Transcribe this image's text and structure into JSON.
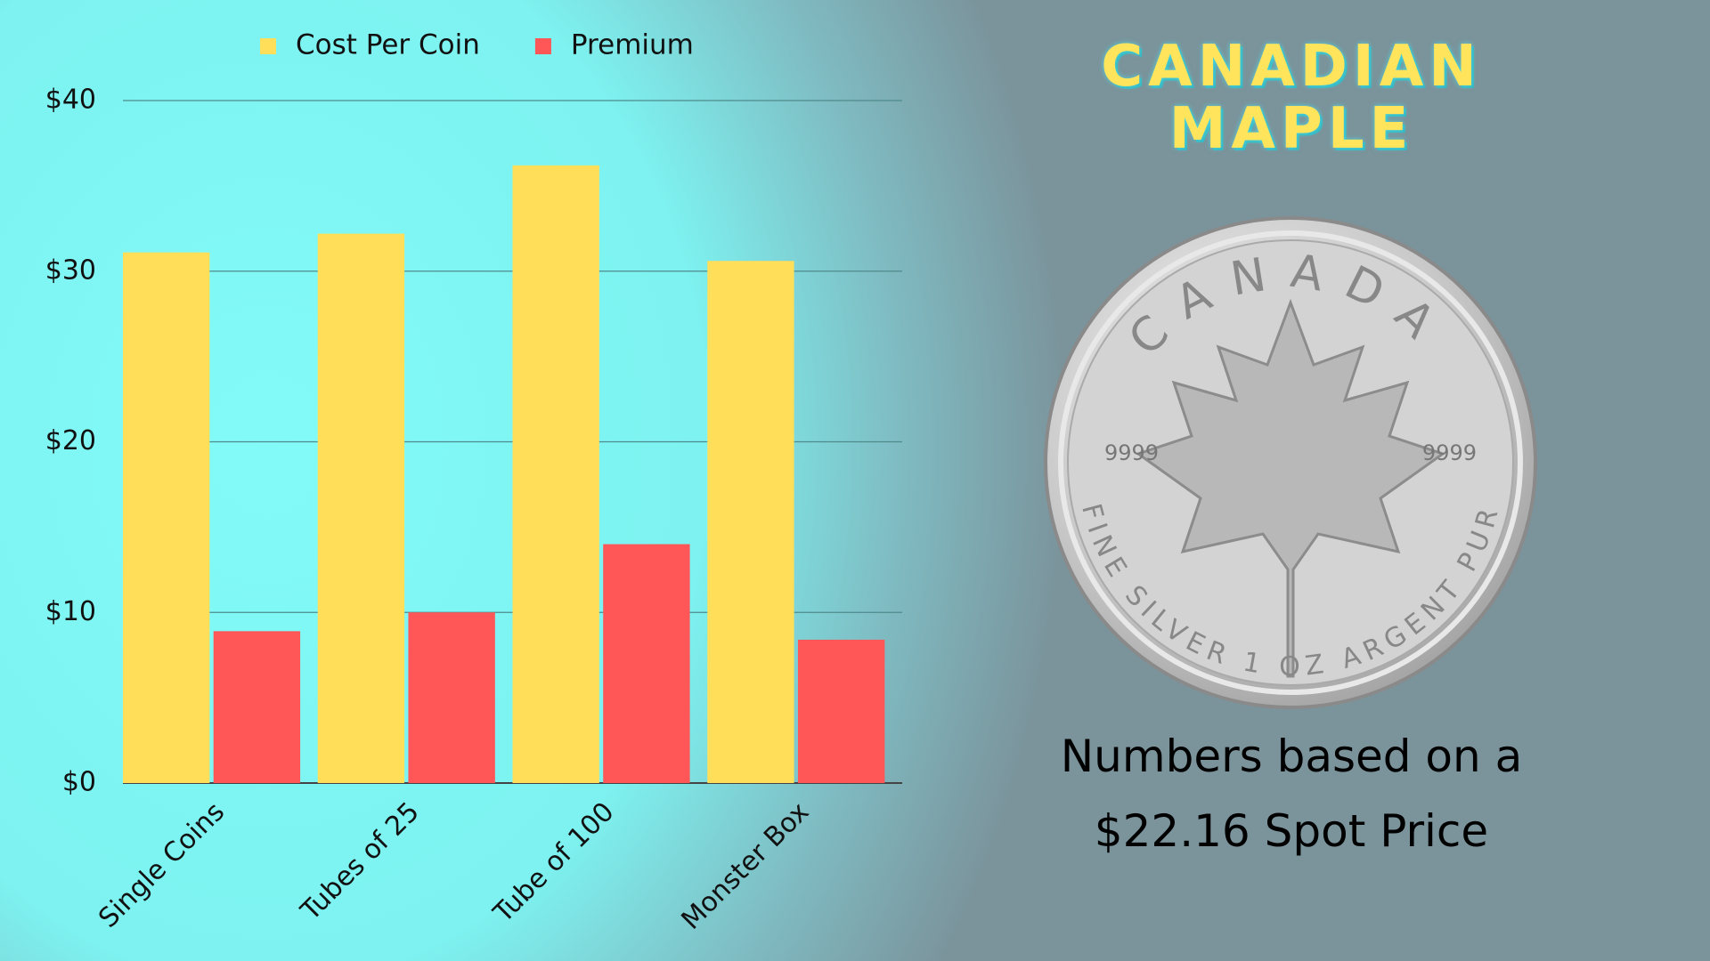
{
  "chart_data": {
    "type": "bar",
    "title": "CANADIAN MAPLE",
    "caption": "Numbers based on a $22.16 Spot Price",
    "categories": [
      "Single Coins",
      "Tubes of 25",
      "Tube of 100",
      "Monster Box"
    ],
    "series": [
      {
        "name": "Cost Per Coin",
        "color": "#ffdf5a",
        "values": [
          31.1,
          32.2,
          36.2,
          30.6
        ]
      },
      {
        "name": "Premium",
        "color": "#ff5757",
        "values": [
          8.9,
          10.0,
          14.0,
          8.4
        ]
      }
    ],
    "ylim": [
      0,
      40
    ],
    "yticks": [
      {
        "value": 0,
        "label": "$0"
      },
      {
        "value": 10,
        "label": "$10"
      },
      {
        "value": 20,
        "label": "$20"
      },
      {
        "value": 30,
        "label": "$30"
      },
      {
        "value": 40,
        "label": "$40"
      }
    ],
    "grid": true,
    "legend": "top",
    "coin": {
      "top": "CANADA",
      "bottom": "FINE SILVER 1 OZ ARGENT PUR",
      "purity_left": "9999",
      "purity_right": "9999"
    }
  }
}
